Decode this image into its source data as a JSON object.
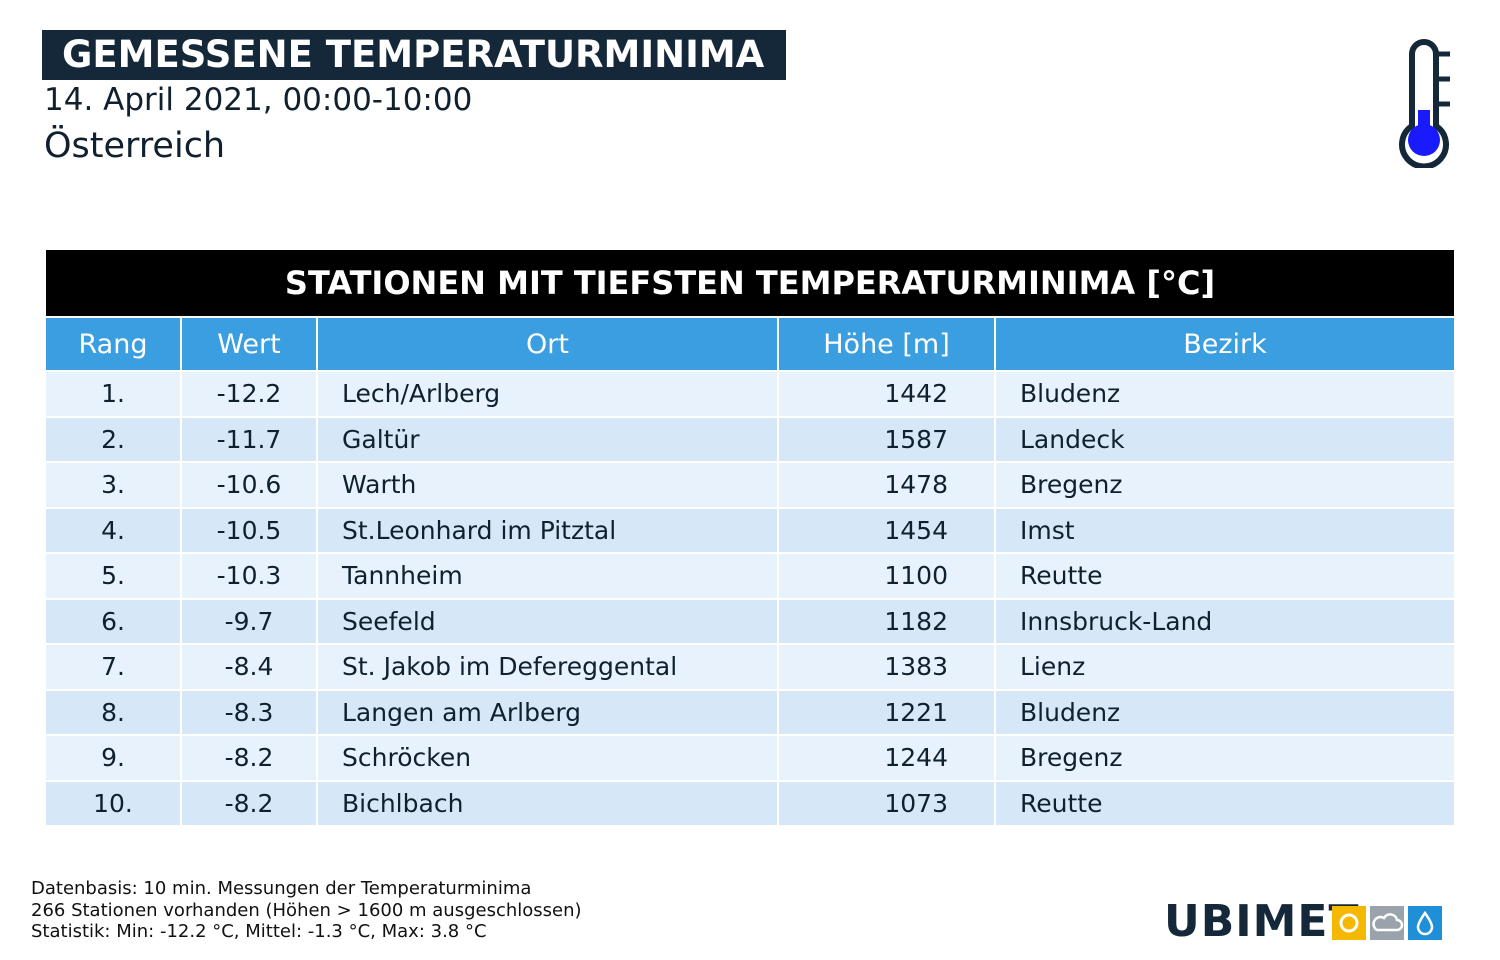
{
  "header": {
    "title": "GEMESSENE TEMPERATURMINIMA",
    "date": "14. April 2021, 00:00-10:00",
    "region": "Österreich"
  },
  "table": {
    "title": "STATIONEN MIT TIEFSTEN TEMPERATURMINIMA [°C]",
    "columns": [
      "Rang",
      "Wert",
      "Ort",
      "Höhe [m]",
      "Bezirk"
    ],
    "rows": [
      [
        "1.",
        "-12.2",
        "Lech/Arlberg",
        "1442",
        "Bludenz"
      ],
      [
        "2.",
        "-11.7",
        "Galtür",
        "1587",
        "Landeck"
      ],
      [
        "3.",
        "-10.6",
        "Warth",
        "1478",
        "Bregenz"
      ],
      [
        "4.",
        "-10.5",
        "St.Leonhard im Pitztal",
        "1454",
        "Imst"
      ],
      [
        "5.",
        "-10.3",
        "Tannheim",
        "1100",
        "Reutte"
      ],
      [
        "6.",
        "-9.7",
        "Seefeld",
        "1182",
        "Innsbruck-Land"
      ],
      [
        "7.",
        "-8.4",
        "St. Jakob im Defereggental",
        "1383",
        "Lienz"
      ],
      [
        "8.",
        "-8.3",
        "Langen am Arlberg",
        "1221",
        "Bludenz"
      ],
      [
        "9.",
        "-8.2",
        "Schröcken",
        "1244",
        "Bregenz"
      ],
      [
        "10.",
        "-8.2",
        "Bichlbach",
        "1073",
        "Reutte"
      ]
    ]
  },
  "footer": {
    "lines": [
      "Datenbasis: 10 min. Messungen der Temperaturminima",
      "266 Stationen vorhanden (Höhen > 1600 m ausgeschlossen)",
      "Statistik: Min: -12.2 °C, Mittel: -1.3 °C, Max: 3.8 °C"
    ],
    "logo": "UBIMET"
  }
}
